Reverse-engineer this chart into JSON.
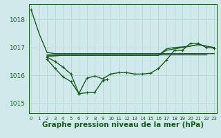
{
  "background_color": "#d0eaec",
  "grid_color": "#b8d8da",
  "line_color": "#1a5c1a",
  "xlabel": "Graphe pression niveau de la mer (hPa)",
  "xlabel_fontsize": 7.5,
  "yticks": [
    1015,
    1016,
    1017,
    1018
  ],
  "xticks": [
    0,
    1,
    2,
    3,
    4,
    5,
    6,
    7,
    8,
    9,
    10,
    11,
    12,
    13,
    14,
    15,
    16,
    17,
    18,
    19,
    20,
    21,
    22,
    23
  ],
  "xlim": [
    -0.3,
    23.3
  ],
  "ylim": [
    1014.65,
    1018.55
  ],
  "series": [
    {
      "x": [
        0,
        1,
        2,
        3,
        4,
        5,
        6,
        7,
        8,
        9,
        10,
        11,
        12,
        13,
        14,
        15,
        16,
        17,
        18,
        19,
        20,
        21,
        22,
        23
      ],
      "y": [
        1018.35,
        1017.5,
        1016.82,
        1016.78,
        1016.78,
        1016.78,
        1016.78,
        1016.78,
        1016.78,
        1016.78,
        1016.78,
        1016.78,
        1016.78,
        1016.78,
        1016.78,
        1016.78,
        1016.78,
        1016.78,
        1016.78,
        1016.78,
        1016.78,
        1016.78,
        1016.78,
        1016.78
      ],
      "marker": false,
      "lw": 1.0
    },
    {
      "x": [
        2,
        3,
        4,
        5,
        6,
        7,
        8,
        9,
        10,
        11,
        12,
        13,
        14,
        15,
        16,
        17,
        18,
        19,
        20,
        21,
        22
      ],
      "y": [
        1016.75,
        1016.75,
        1016.75,
        1016.75,
        1016.75,
        1016.75,
        1016.75,
        1016.75,
        1016.75,
        1016.75,
        1016.75,
        1016.75,
        1016.75,
        1016.75,
        1016.75,
        1016.75,
        1016.75,
        1016.75,
        1016.75,
        1016.75,
        1016.75
      ],
      "marker": false,
      "lw": 1.0
    },
    {
      "x": [
        2,
        3,
        4,
        5,
        6,
        7,
        8,
        9,
        10,
        11,
        12,
        13,
        14,
        15,
        16,
        17,
        18,
        19,
        20,
        21,
        22
      ],
      "y": [
        1016.68,
        1016.7,
        1016.72,
        1016.72,
        1016.72,
        1016.72,
        1016.72,
        1016.72,
        1016.72,
        1016.72,
        1016.72,
        1016.72,
        1016.72,
        1016.72,
        1016.72,
        1016.9,
        1016.95,
        1017.0,
        1017.05,
        1017.1,
        1017.05
      ],
      "marker": false,
      "lw": 1.0
    },
    {
      "x": [
        2,
        3,
        4,
        5,
        6,
        7,
        8,
        9,
        10,
        11,
        12,
        13,
        14,
        15,
        16,
        17,
        18,
        19,
        20,
        21,
        22,
        23
      ],
      "y": [
        1016.72,
        1016.72,
        1016.72,
        1016.72,
        1016.72,
        1016.72,
        1016.72,
        1016.72,
        1016.72,
        1016.72,
        1016.72,
        1016.72,
        1016.72,
        1016.72,
        1016.72,
        1016.95,
        1017.0,
        1017.02,
        1017.05,
        1017.1,
        1017.05,
        1017.0
      ],
      "marker": false,
      "lw": 1.0
    },
    {
      "x": [
        2,
        3,
        4,
        5,
        6,
        7,
        8,
        9,
        10,
        11,
        12,
        13,
        14,
        15,
        16,
        17,
        18,
        19,
        20,
        21,
        22,
        23
      ],
      "y": [
        1016.65,
        1016.5,
        1016.3,
        1016.05,
        1015.35,
        1015.9,
        1015.98,
        1015.88,
        1016.05,
        1016.1,
        1016.1,
        1016.05,
        1016.05,
        1016.08,
        1016.25,
        1016.55,
        1016.9,
        1016.9,
        1017.15,
        1017.15,
        1017.0,
        1016.98
      ],
      "marker": true,
      "lw": 1.0
    },
    {
      "x": [
        2,
        3,
        4,
        5,
        6,
        7,
        8,
        9,
        9.5
      ],
      "y": [
        1016.58,
        1016.25,
        1015.95,
        1015.78,
        1015.35,
        1015.38,
        1015.4,
        1015.82,
        1015.85
      ],
      "marker": true,
      "lw": 1.0
    }
  ]
}
